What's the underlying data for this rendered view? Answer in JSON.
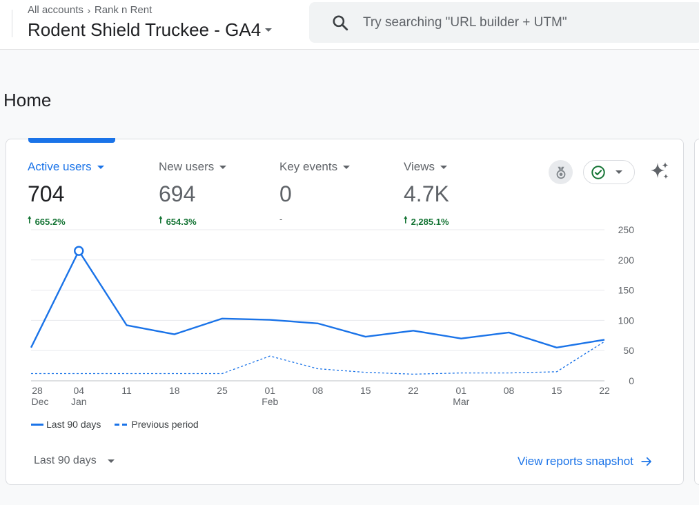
{
  "header": {
    "breadcrumb": {
      "account": "All accounts",
      "property_group": "Rank n Rent"
    },
    "property_name": "Rodent Shield Truckee - GA4",
    "search_placeholder": "Try searching \"URL builder + UTM\""
  },
  "page_title": "Home",
  "metrics": [
    {
      "label": "Active users",
      "value": "704",
      "change": "665.2%",
      "direction": "up",
      "selected": true
    },
    {
      "label": "New users",
      "value": "694",
      "change": "654.3%",
      "direction": "up",
      "selected": false
    },
    {
      "label": "Key events",
      "value": "0",
      "change": "-",
      "direction": "none",
      "selected": false
    },
    {
      "label": "Views",
      "value": "4.7K",
      "change": "2,285.1%",
      "direction": "up",
      "selected": false
    }
  ],
  "icons": {
    "search": "search-icon",
    "insight": "insight-badge-icon",
    "status": "check-circle-icon",
    "sparkle": "sparkle-icon",
    "arrow": "arrow-right-icon"
  },
  "colors": {
    "accent": "#1a73e8",
    "positive": "#137333",
    "muted": "#5f6368"
  },
  "chart_data": {
    "type": "line",
    "x_ticks": [
      {
        "day": "28",
        "month": "Dec"
      },
      {
        "day": "04",
        "month": "Jan"
      },
      {
        "day": "11",
        "month": ""
      },
      {
        "day": "18",
        "month": ""
      },
      {
        "day": "25",
        "month": ""
      },
      {
        "day": "01",
        "month": "Feb"
      },
      {
        "day": "08",
        "month": ""
      },
      {
        "day": "15",
        "month": ""
      },
      {
        "day": "22",
        "month": ""
      },
      {
        "day": "01",
        "month": "Mar"
      },
      {
        "day": "08",
        "month": ""
      },
      {
        "day": "15",
        "month": ""
      },
      {
        "day": "22",
        "month": ""
      }
    ],
    "y_ticks": [
      0,
      50,
      100,
      150,
      200,
      250
    ],
    "ylim": [
      0,
      250
    ],
    "series": [
      {
        "name": "Last 90 days",
        "style": "solid",
        "values": [
          55,
          215,
          92,
          77,
          103,
          101,
          95,
          73,
          83,
          70,
          80,
          55,
          68
        ]
      },
      {
        "name": "Previous period",
        "style": "dashed",
        "values": [
          12,
          12,
          12,
          12,
          12,
          41,
          20,
          14,
          11,
          13,
          13,
          15,
          65
        ]
      }
    ],
    "highlight_index": 1,
    "grid": true
  },
  "footer": {
    "range_label": "Last 90 days",
    "snapshot_link": "View reports snapshot"
  }
}
